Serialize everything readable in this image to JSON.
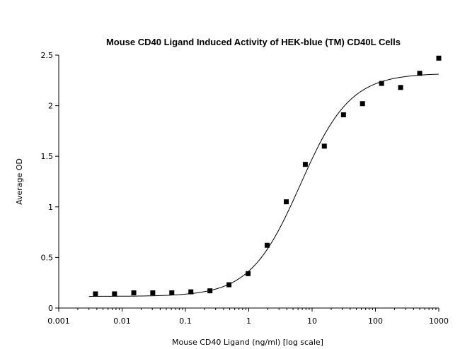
{
  "chart_data": {
    "type": "scatter",
    "title": "Mouse CD40 Ligand Induced Activity of HEK-blue (TM) CD40L Cells",
    "xlabel": "Mouse CD40 Ligand (ng/ml) [log scale]",
    "ylabel": "Average OD",
    "x_scale": "log",
    "xlim": [
      0.001,
      1000
    ],
    "ylim": [
      0,
      2.5
    ],
    "x_ticks": [
      0.001,
      0.01,
      0.1,
      1,
      10,
      100,
      1000
    ],
    "x_tick_labels": [
      "0.001",
      "0.01",
      "0.1",
      "1",
      "10",
      "100",
      "1000"
    ],
    "y_ticks": [
      0,
      0.5,
      1,
      1.5,
      2,
      2.5
    ],
    "y_tick_labels": [
      "0",
      "0.5",
      "1",
      "1.5",
      "2",
      "2.5"
    ],
    "grid": false,
    "legend": "none",
    "series": [
      {
        "marker": "square",
        "color": "#000000",
        "x": [
          0.0038,
          0.0076,
          0.0153,
          0.0305,
          0.061,
          0.122,
          0.244,
          0.488,
          0.977,
          1.95,
          3.91,
          7.81,
          15.6,
          31.3,
          62.5,
          125,
          250,
          500,
          1000
        ],
        "y": [
          0.14,
          0.14,
          0.15,
          0.15,
          0.15,
          0.16,
          0.17,
          0.23,
          0.34,
          0.62,
          1.05,
          1.42,
          1.6,
          1.91,
          2.02,
          2.22,
          2.18,
          2.32,
          2.47
        ]
      }
    ],
    "fit_curve": {
      "model": "4PL",
      "bottom": 0.115,
      "top": 2.32,
      "ec50": 6.5,
      "hill": 1.1,
      "color": "#000000"
    }
  }
}
